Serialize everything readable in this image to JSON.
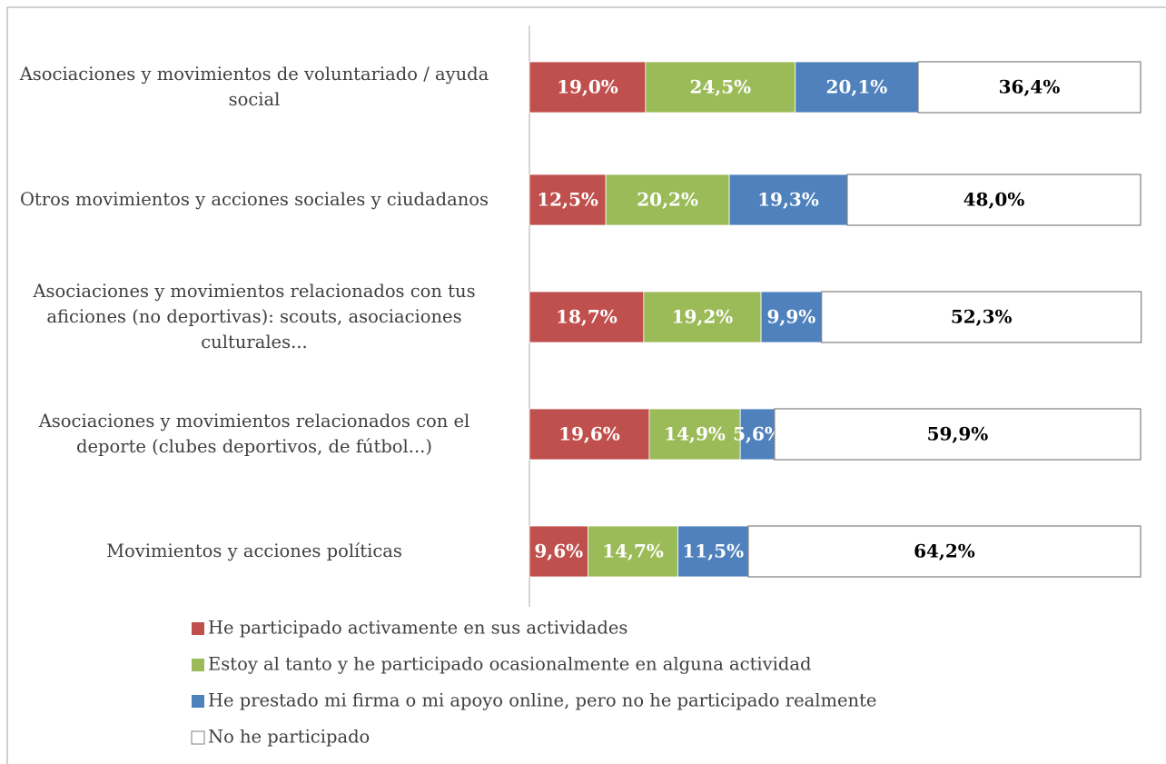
{
  "chart_data": {
    "type": "stacked_barh",
    "categories": [
      "Asociaciones y movimientos de voluntariado / ayuda social",
      "Otros movimientos y acciones sociales y ciudadanos",
      "Asociaciones y movimientos relacionados con tus aficiones (no deportivas): scouts, asociaciones culturales...",
      "Asociaciones y movimientos relacionados con el deporte (clubes deportivos, de fútbol...)",
      "Movimientos y acciones políticas"
    ],
    "xlim": [
      0,
      100
    ],
    "series": [
      {
        "name": "He participado activamente en sus actividades",
        "color": "#c0504d",
        "label_color": "#ffffff",
        "values": [
          19.0,
          12.5,
          18.7,
          19.6,
          9.6
        ],
        "value_labels": [
          "19,0%",
          "12,5%",
          "18,7%",
          "19,6%",
          "9,6%"
        ]
      },
      {
        "name": "Estoy al tanto y he participado ocasionalmente en alguna actividad",
        "color": "#9bbb59",
        "label_color": "#ffffff",
        "values": [
          24.5,
          20.2,
          19.2,
          14.9,
          14.7
        ],
        "value_labels": [
          "24,5%",
          "20,2%",
          "19,2%",
          "14,9%",
          "14,7%"
        ]
      },
      {
        "name": "He prestado mi firma o mi apoyo online, pero no he participado realmente",
        "color": "#4f81bd",
        "label_color": "#ffffff",
        "values": [
          20.1,
          19.3,
          9.9,
          5.6,
          11.5
        ],
        "value_labels": [
          "20,1%",
          "19,3%",
          "9,9%",
          "5,6%",
          "11,5%"
        ]
      },
      {
        "name": "No he participado",
        "color": "#ffffff",
        "label_color": "#000000",
        "values": [
          36.4,
          48.0,
          52.3,
          59.9,
          64.2
        ],
        "value_labels": [
          "36,4%",
          "48,0%",
          "52,3%",
          "59,9%",
          "64,2%"
        ]
      }
    ],
    "legend": "bottom"
  }
}
